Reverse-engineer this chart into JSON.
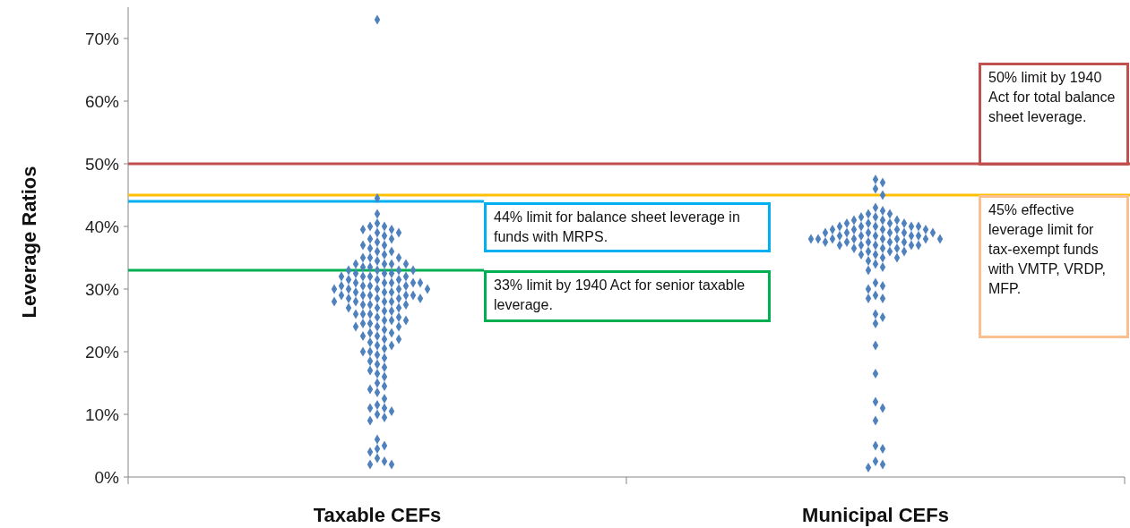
{
  "chart_data": {
    "type": "scatter",
    "ylabel": "Leverage Ratios",
    "categories": [
      "Taxable CEFs",
      "Municipal CEFs"
    ],
    "ylim": [
      0,
      75
    ],
    "yticks": [
      {
        "value": 0,
        "label": "0%"
      },
      {
        "value": 10,
        "label": "10%"
      },
      {
        "value": 20,
        "label": "20%"
      },
      {
        "value": 30,
        "label": "30%"
      },
      {
        "value": 40,
        "label": "40%"
      },
      {
        "value": 50,
        "label": "50%"
      },
      {
        "value": 60,
        "label": "60%"
      },
      {
        "value": 70,
        "label": "70%"
      }
    ],
    "marker": "diamond",
    "series": [
      {
        "color": "#4f81bd",
        "x": [
          "Taxable CEFs",
          "Taxable CEFs",
          "Taxable CEFs",
          "Taxable CEFs",
          "Taxable CEFs",
          "Taxable CEFs",
          "Taxable CEFs",
          "Taxable CEFs",
          "Taxable CEFs",
          "Taxable CEFs",
          "Taxable CEFs",
          "Taxable CEFs",
          "Taxable CEFs",
          "Taxable CEFs",
          "Taxable CEFs",
          "Taxable CEFs",
          "Taxable CEFs",
          "Taxable CEFs",
          "Taxable CEFs",
          "Taxable CEFs",
          "Taxable CEFs",
          "Taxable CEFs",
          "Taxable CEFs",
          "Taxable CEFs",
          "Taxable CEFs",
          "Taxable CEFs",
          "Taxable CEFs",
          "Taxable CEFs",
          "Taxable CEFs",
          "Taxable CEFs",
          "Taxable CEFs",
          "Taxable CEFs",
          "Taxable CEFs",
          "Taxable CEFs",
          "Taxable CEFs",
          "Taxable CEFs",
          "Taxable CEFs",
          "Taxable CEFs",
          "Taxable CEFs",
          "Taxable CEFs",
          "Taxable CEFs",
          "Taxable CEFs",
          "Taxable CEFs",
          "Taxable CEFs",
          "Taxable CEFs",
          "Taxable CEFs",
          "Taxable CEFs",
          "Taxable CEFs",
          "Taxable CEFs",
          "Taxable CEFs",
          "Taxable CEFs",
          "Taxable CEFs",
          "Taxable CEFs",
          "Taxable CEFs",
          "Taxable CEFs",
          "Taxable CEFs",
          "Taxable CEFs",
          "Taxable CEFs",
          "Taxable CEFs",
          "Taxable CEFs",
          "Taxable CEFs",
          "Taxable CEFs",
          "Taxable CEFs",
          "Taxable CEFs",
          "Taxable CEFs",
          "Taxable CEFs",
          "Taxable CEFs",
          "Taxable CEFs",
          "Taxable CEFs",
          "Taxable CEFs",
          "Taxable CEFs",
          "Taxable CEFs",
          "Taxable CEFs",
          "Taxable CEFs",
          "Taxable CEFs",
          "Taxable CEFs",
          "Taxable CEFs",
          "Taxable CEFs",
          "Taxable CEFs",
          "Taxable CEFs",
          "Taxable CEFs",
          "Taxable CEFs",
          "Taxable CEFs",
          "Taxable CEFs",
          "Taxable CEFs",
          "Taxable CEFs",
          "Taxable CEFs",
          "Taxable CEFs",
          "Taxable CEFs",
          "Taxable CEFs",
          "Taxable CEFs",
          "Taxable CEFs",
          "Taxable CEFs",
          "Taxable CEFs",
          "Taxable CEFs",
          "Taxable CEFs",
          "Taxable CEFs",
          "Taxable CEFs",
          "Taxable CEFs",
          "Taxable CEFs",
          "Taxable CEFs",
          "Taxable CEFs",
          "Taxable CEFs",
          "Taxable CEFs",
          "Taxable CEFs",
          "Taxable CEFs",
          "Taxable CEFs",
          "Taxable CEFs",
          "Taxable CEFs",
          "Taxable CEFs",
          "Taxable CEFs",
          "Taxable CEFs",
          "Taxable CEFs",
          "Taxable CEFs",
          "Taxable CEFs",
          "Taxable CEFs",
          "Taxable CEFs",
          "Taxable CEFs",
          "Taxable CEFs",
          "Taxable CEFs",
          "Taxable CEFs",
          "Taxable CEFs",
          "Taxable CEFs",
          "Taxable CEFs",
          "Taxable CEFs",
          "Taxable CEFs",
          "Taxable CEFs",
          "Taxable CEFs",
          "Taxable CEFs",
          "Taxable CEFs",
          "Taxable CEFs",
          "Taxable CEFs",
          "Taxable CEFs",
          "Taxable CEFs",
          "Taxable CEFs",
          "Taxable CEFs"
        ],
        "values": [
          73,
          44.5,
          42,
          40.5,
          40,
          40,
          39.5,
          39.5,
          39,
          39,
          38.5,
          38,
          38,
          37.5,
          37,
          37,
          36.5,
          36,
          36,
          35.5,
          35,
          35,
          35,
          34.5,
          34,
          34,
          34,
          34,
          33.5,
          33.5,
          33,
          33,
          33,
          33,
          32.5,
          32.5,
          32.5,
          32,
          32,
          32,
          32,
          31.5,
          31.5,
          31.5,
          31,
          31,
          31,
          31,
          31,
          30.5,
          30.5,
          30.5,
          30.5,
          30,
          30,
          30,
          30,
          30,
          29.5,
          29.5,
          29.5,
          29,
          29,
          29,
          29,
          29,
          28.5,
          28.5,
          28.5,
          28.5,
          28,
          28,
          28,
          28,
          27.5,
          27.5,
          27.5,
          27,
          27,
          27,
          26.5,
          26.5,
          26,
          26,
          26,
          25.5,
          25.5,
          25,
          25,
          25,
          24.5,
          24.5,
          24,
          24,
          24,
          23.5,
          23,
          23,
          22.5,
          22.5,
          22,
          22,
          21.5,
          21,
          21,
          20.5,
          20,
          20,
          19.5,
          19,
          18.5,
          18,
          17.5,
          17,
          16.5,
          16,
          15,
          14.5,
          14,
          13.5,
          12.5,
          11.5,
          11,
          11,
          10.5,
          10,
          9.5,
          9,
          6,
          5,
          4.5,
          4,
          3,
          2.5,
          2,
          2
        ]
      },
      {
        "color": "#4f81bd",
        "x": [
          "Municipal CEFs",
          "Municipal CEFs",
          "Municipal CEFs",
          "Municipal CEFs",
          "Municipal CEFs",
          "Municipal CEFs",
          "Municipal CEFs",
          "Municipal CEFs",
          "Municipal CEFs",
          "Municipal CEFs",
          "Municipal CEFs",
          "Municipal CEFs",
          "Municipal CEFs",
          "Municipal CEFs",
          "Municipal CEFs",
          "Municipal CEFs",
          "Municipal CEFs",
          "Municipal CEFs",
          "Municipal CEFs",
          "Municipal CEFs",
          "Municipal CEFs",
          "Municipal CEFs",
          "Municipal CEFs",
          "Municipal CEFs",
          "Municipal CEFs",
          "Municipal CEFs",
          "Municipal CEFs",
          "Municipal CEFs",
          "Municipal CEFs",
          "Municipal CEFs",
          "Municipal CEFs",
          "Municipal CEFs",
          "Municipal CEFs",
          "Municipal CEFs",
          "Municipal CEFs",
          "Municipal CEFs",
          "Municipal CEFs",
          "Municipal CEFs",
          "Municipal CEFs",
          "Municipal CEFs",
          "Municipal CEFs",
          "Municipal CEFs",
          "Municipal CEFs",
          "Municipal CEFs",
          "Municipal CEFs",
          "Municipal CEFs",
          "Municipal CEFs",
          "Municipal CEFs",
          "Municipal CEFs",
          "Municipal CEFs",
          "Municipal CEFs",
          "Municipal CEFs",
          "Municipal CEFs",
          "Municipal CEFs",
          "Municipal CEFs",
          "Municipal CEFs",
          "Municipal CEFs",
          "Municipal CEFs",
          "Municipal CEFs",
          "Municipal CEFs",
          "Municipal CEFs",
          "Municipal CEFs",
          "Municipal CEFs",
          "Municipal CEFs",
          "Municipal CEFs",
          "Municipal CEFs",
          "Municipal CEFs",
          "Municipal CEFs",
          "Municipal CEFs",
          "Municipal CEFs",
          "Municipal CEFs",
          "Municipal CEFs",
          "Municipal CEFs",
          "Municipal CEFs",
          "Municipal CEFs",
          "Municipal CEFs",
          "Municipal CEFs",
          "Municipal CEFs",
          "Municipal CEFs",
          "Municipal CEFs",
          "Municipal CEFs",
          "Municipal CEFs",
          "Municipal CEFs",
          "Municipal CEFs",
          "Municipal CEFs",
          "Municipal CEFs",
          "Municipal CEFs",
          "Municipal CEFs",
          "Municipal CEFs"
        ],
        "values": [
          47.5,
          47,
          46,
          45,
          43,
          42.5,
          42,
          42,
          41.5,
          41.5,
          41,
          41,
          41,
          40.5,
          40.5,
          40.5,
          40.5,
          40,
          40,
          40,
          40,
          40,
          39.5,
          39.5,
          39.5,
          39.5,
          39.5,
          39,
          39,
          39,
          39,
          39,
          39,
          38.5,
          38.5,
          38.5,
          38.5,
          38.5,
          38,
          38,
          38,
          38,
          38,
          38,
          38,
          38,
          37.5,
          37.5,
          37.5,
          37.5,
          37.5,
          37,
          37,
          37,
          37,
          37,
          36.5,
          36.5,
          36.5,
          36,
          36,
          36,
          35.5,
          35.5,
          35,
          35,
          34.5,
          34,
          33.5,
          33,
          31,
          30.5,
          30,
          29,
          28.5,
          28.5,
          26,
          25.5,
          24.5,
          21,
          16.5,
          12,
          11,
          9,
          5,
          4.5,
          2.5,
          2,
          1.5
        ]
      }
    ],
    "ref_lines": [
      {
        "axis": "y",
        "value": 50,
        "label": "50% limit by 1940 Act for total balance sheet leverage.",
        "color": "#c0504d"
      },
      {
        "axis": "y",
        "value": 45,
        "label": "45% effective leverage limit for tax-exempt funds with VMTP, VRDP, MFP.",
        "color": "#ffc000"
      },
      {
        "axis": "y",
        "value": 44,
        "label": "44% limit for balance sheet leverage in funds with MRPS.",
        "color": "#00b0f0"
      },
      {
        "axis": "y",
        "value": 33,
        "label": "33% limit by 1940 Act for senior taxable leverage.",
        "color": "#00b050"
      }
    ]
  }
}
